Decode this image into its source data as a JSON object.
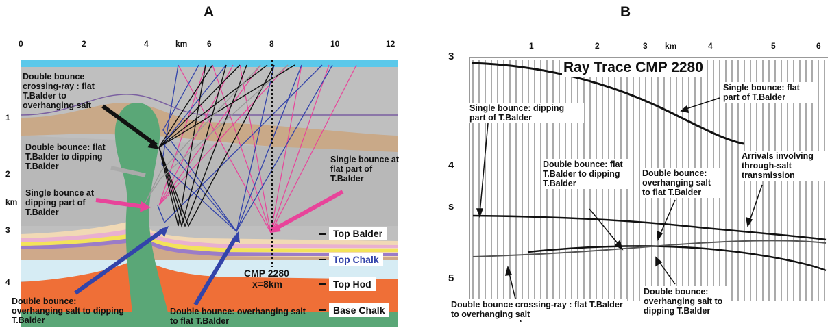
{
  "panel_a": {
    "letter": "A",
    "x_ticks": [
      "0",
      "2",
      "4",
      "km",
      "6",
      "8",
      "10",
      "12"
    ],
    "y_ticks": [
      "1",
      "2",
      "km",
      "3",
      "4"
    ],
    "annotations": {
      "crossing_ray": "Double bounce crossing-ray : flat T.Balder to overhanging salt",
      "flat_to_dipping": "Double bounce: flat T.Balder to dipping T.Balder",
      "single_dipping": "Single bounce at dipping part of T.Balder",
      "single_flat": "Single bounce at flat part of T.Balder",
      "overhang_to_dipping": "Double bounce: overhanging salt to dipping T.Balder",
      "overhang_to_flat": "Double bounce: overhanging salt to flat T.Balder",
      "cmp": "CMP 2280",
      "cmp_x": "x=8km"
    },
    "horizons": [
      "Top Balder",
      "Top Chalk",
      "Top Hod",
      "Base Chalk"
    ],
    "colors": {
      "water": "#5bc8ea",
      "gray_layer": "#bfbfbf",
      "tan_layer": "#c9a988",
      "salt": "#5aa777",
      "chalk_light": "#d6ecf4",
      "orange": "#ef6f37",
      "ray_blue": "#3344aa",
      "ray_pink": "#e8449a",
      "ray_black": "#111111",
      "ray_gray": "#9a9a9a"
    }
  },
  "panel_b": {
    "letter": "B",
    "title": "Ray Trace CMP 2280",
    "x_ticks": [
      "1",
      "2",
      "3",
      "km",
      "4",
      "5",
      "6"
    ],
    "y_ticks": [
      "3",
      "4",
      "s",
      "5"
    ],
    "annotations": {
      "single_flat": "Single bounce: flat part of T.Balder",
      "single_dipping": "Single bounce: dipping part of T.Balder",
      "arrivals_salt": "Arrivals involving through-salt transmission",
      "flat_to_dipping": "Double bounce: flat T.Balder to dipping T.Balder",
      "overhang_to_flat": "Double bounce: overhanging salt to flat T.Balder",
      "crossing_ray": "Double bounce crossing-ray : flat T.Balder to overhanging salt",
      "overhang_to_dipping": "Double bounce: overhanging salt to dipping T.Balder"
    }
  }
}
